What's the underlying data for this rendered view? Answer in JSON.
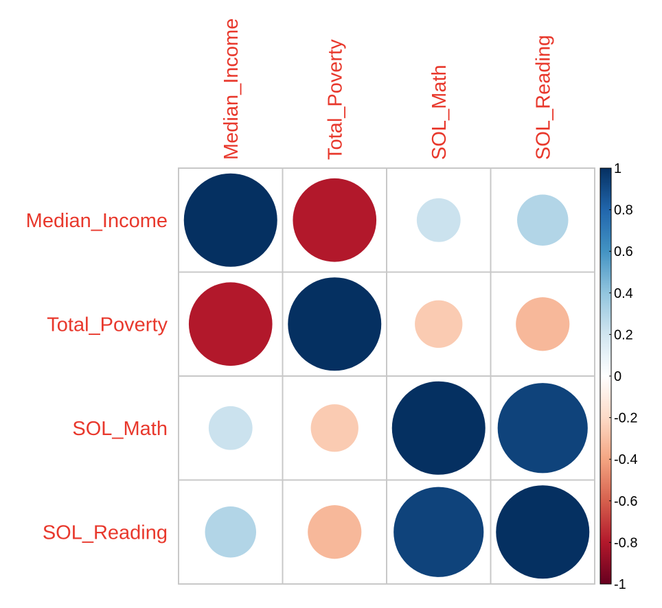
{
  "chart_data": {
    "type": "heatmap",
    "style": "correlation circles",
    "variables": [
      "Median_Income",
      "Total_Poverty",
      "SOL_Math",
      "SOL_Reading"
    ],
    "row_labels": [
      "Median_Income",
      "Total_Poverty",
      "SOL_Math",
      "SOL_Reading"
    ],
    "col_labels": [
      "Median_Income",
      "Total_Poverty",
      "SOL_Math",
      "SOL_Reading"
    ],
    "matrix": [
      [
        1.0,
        -0.8,
        0.22,
        0.3
      ],
      [
        -0.8,
        1.0,
        -0.26,
        -0.33
      ],
      [
        0.22,
        -0.26,
        1.0,
        0.93
      ],
      [
        0.3,
        -0.33,
        0.93,
        1.0
      ]
    ],
    "color_scale": {
      "range": [
        -1,
        1
      ],
      "stops": [
        {
          "value": -1.0,
          "color": "#67001f"
        },
        {
          "value": -0.8,
          "color": "#b2182b"
        },
        {
          "value": -0.6,
          "color": "#d6604d"
        },
        {
          "value": -0.4,
          "color": "#f4a582"
        },
        {
          "value": -0.2,
          "color": "#fddbc7"
        },
        {
          "value": 0.0,
          "color": "#ffffff"
        },
        {
          "value": 0.2,
          "color": "#d1e5f0"
        },
        {
          "value": 0.4,
          "color": "#92c5de"
        },
        {
          "value": 0.6,
          "color": "#4393c3"
        },
        {
          "value": 0.8,
          "color": "#2166ac"
        },
        {
          "value": 1.0,
          "color": "#053061"
        }
      ],
      "ticks": [
        "1",
        "0.8",
        "0.6",
        "0.4",
        "0.2",
        "0",
        "-0.2",
        "-0.4",
        "-0.6",
        "-0.8",
        "-1"
      ]
    },
    "label_color": "#e8382c",
    "grid_color": "#c8c8c8",
    "grid": true,
    "legend": "right"
  }
}
